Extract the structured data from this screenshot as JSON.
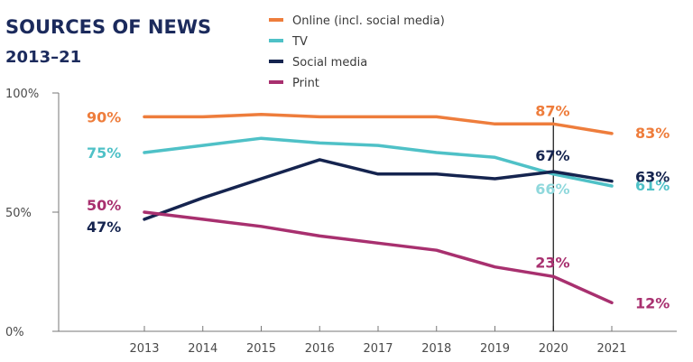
{
  "chart_data": {
    "type": "line",
    "title": "SOURCES OF NEWS",
    "subtitle": "2013–21",
    "categories": [
      "2013",
      "2014",
      "2015",
      "2016",
      "2017",
      "2018",
      "2019",
      "2020",
      "2021"
    ],
    "ylim": [
      0,
      100
    ],
    "yticks": [
      {
        "value": 100,
        "label": "100%"
      },
      {
        "value": 50,
        "label": "50%"
      },
      {
        "value": 0,
        "label": "0%"
      }
    ],
    "grid": false,
    "legend_position": "top",
    "highlight_category": "2020",
    "series": [
      {
        "name": "Online (incl. social media)",
        "color": "#ee7d3c",
        "values": [
          90,
          90,
          91,
          90,
          90,
          90,
          87,
          87,
          83
        ],
        "labels": [
          {
            "category": "2013",
            "text": "90%"
          },
          {
            "category": "2020",
            "text": "87%"
          },
          {
            "category": "2021",
            "text": "83%"
          }
        ]
      },
      {
        "name": "TV",
        "color": "#4fc1c7",
        "values": [
          75,
          78,
          81,
          79,
          78,
          75,
          73,
          66,
          61
        ],
        "labels": [
          {
            "category": "2013",
            "text": "75%"
          },
          {
            "category": "2020",
            "text": "66%"
          },
          {
            "category": "2021",
            "text": "61%"
          }
        ]
      },
      {
        "name": "Social media",
        "color": "#15244f",
        "values": [
          47,
          56,
          64,
          72,
          66,
          66,
          64,
          67,
          63
        ],
        "labels": [
          {
            "category": "2013",
            "text": "47%"
          },
          {
            "category": "2020",
            "text": "67%"
          },
          {
            "category": "2021",
            "text": "63%"
          }
        ]
      },
      {
        "name": "Print",
        "color": "#a8306f",
        "values": [
          50,
          47,
          44,
          40,
          37,
          34,
          27,
          23,
          12
        ],
        "labels": [
          {
            "category": "2013",
            "text": "50%"
          },
          {
            "category": "2020",
            "text": "23%"
          },
          {
            "category": "2021",
            "text": "12%"
          }
        ]
      }
    ]
  }
}
